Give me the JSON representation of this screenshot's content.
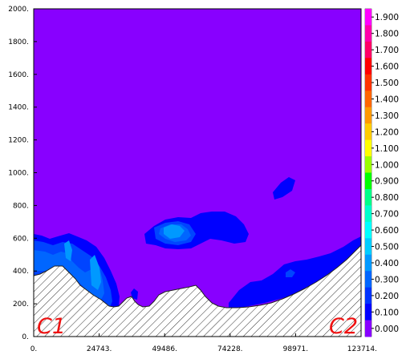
{
  "chart_data": {
    "type": "contour",
    "title": "",
    "xlabel": "",
    "ylabel": "",
    "xlim": [
      0,
      123714
    ],
    "ylim": [
      0,
      2000
    ],
    "x_ticks": [
      "0.",
      "24743.",
      "49486.",
      "74228.",
      "98971.",
      "123714."
    ],
    "x_tick_values": [
      0,
      24743,
      49486,
      74228,
      98971,
      123714
    ],
    "y_ticks": [
      "0.",
      "200.",
      "400.",
      "600.",
      "800.",
      "1000.",
      "1200.",
      "1400.",
      "1600.",
      "1800.",
      "2000."
    ],
    "y_tick_values": [
      0,
      200,
      400,
      600,
      800,
      1000,
      1200,
      1400,
      1600,
      1800,
      2000
    ],
    "colorbar": {
      "labels": [
        "1.900",
        "1.800",
        "1.700",
        "1.600",
        "1.500",
        "1.400",
        "1.300",
        "1.200",
        "1.100",
        "1.000",
        "0.900",
        "0.800",
        "0.700",
        "0.600",
        "0.500",
        "0.400",
        "0.300",
        "0.200",
        "0.100",
        "0.000"
      ],
      "colors": [
        "#ff00ff",
        "#ff00aa",
        "#ff0066",
        "#ff0000",
        "#ff3300",
        "#ff6600",
        "#ff9900",
        "#ffcc00",
        "#ffff00",
        "#99ff00",
        "#00ff00",
        "#00ff88",
        "#00ffcc",
        "#00ffff",
        "#00ccff",
        "#0099ff",
        "#0066ff",
        "#0033ff",
        "#0000ff",
        "#8800ff"
      ]
    },
    "background_level_color": "#8800ff",
    "terrain_hatch": true,
    "corner_labels": {
      "left": "C1",
      "right": "C2"
    }
  }
}
